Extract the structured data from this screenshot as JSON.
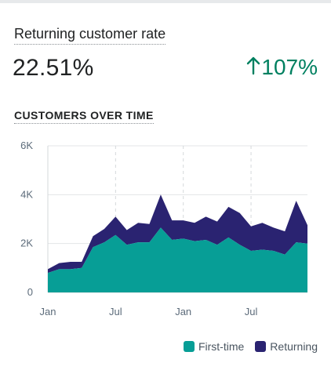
{
  "metric": {
    "title": "Returning customer rate",
    "value": "22.51%",
    "change": "107%",
    "change_direction": "up",
    "change_color": "#008060"
  },
  "section_title": "CUSTOMERS OVER TIME",
  "chart_data": {
    "type": "area",
    "stacked": true,
    "title": "",
    "xlabel": "",
    "ylabel": "",
    "ylim": [
      0,
      6000
    ],
    "y_ticks": [
      "0",
      "2K",
      "4K",
      "6K"
    ],
    "x_tick_labels": [
      "Jan",
      "Jul",
      "Jan",
      "Jul"
    ],
    "grid": true,
    "legend_position": "bottom-right",
    "series": [
      {
        "name": "First-time",
        "color": "#079e96",
        "values": [
          800,
          950,
          950,
          1000,
          1850,
          2050,
          2350,
          1950,
          2050,
          2050,
          2650,
          2150,
          2200,
          2100,
          2150,
          1950,
          2250,
          1950,
          1700,
          1750,
          1700,
          1550,
          2050,
          2000
        ]
      },
      {
        "name": "Returning",
        "color": "#2a2371",
        "values": [
          150,
          250,
          300,
          250,
          450,
          550,
          750,
          600,
          800,
          750,
          1350,
          800,
          750,
          750,
          950,
          950,
          1250,
          1300,
          1000,
          1100,
          950,
          950,
          1700,
          750
        ]
      }
    ]
  }
}
